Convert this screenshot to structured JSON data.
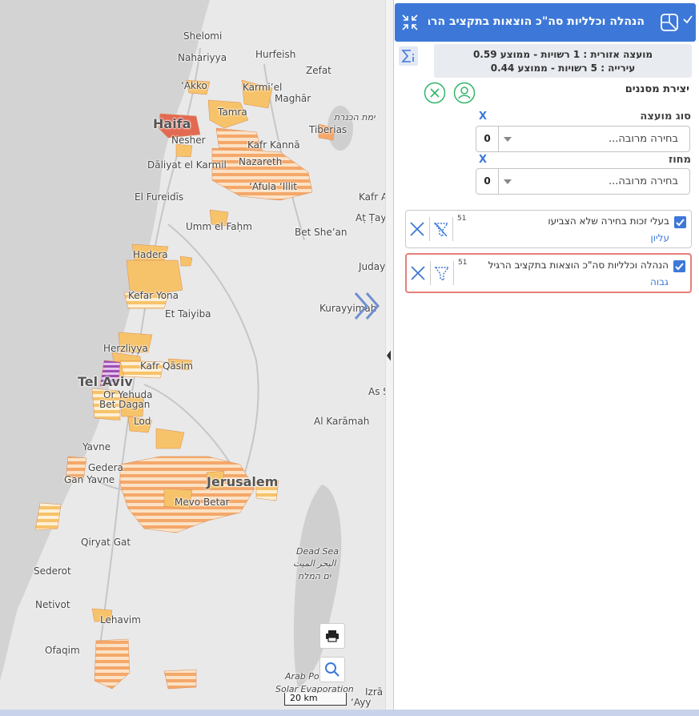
{
  "map": {
    "places": [
      {
        "id": "shelomi",
        "label": "Shelomi"
      },
      {
        "id": "nahariyya",
        "label": "Nahariyya"
      },
      {
        "id": "hurfeish",
        "label": "Hurfeish"
      },
      {
        "id": "zefat",
        "label": "Zefat"
      },
      {
        "id": "akko",
        "label": "‘Akko"
      },
      {
        "id": "karmiel",
        "label": "Karmi’el"
      },
      {
        "id": "maghar",
        "label": "Maghār"
      },
      {
        "id": "tamra",
        "label": "Tamra"
      },
      {
        "id": "haifa",
        "label": "Haifa"
      },
      {
        "id": "yam-kinneret",
        "label": "ימת הכנרת"
      },
      {
        "id": "tiberias",
        "label": "Tiberias"
      },
      {
        "id": "nesher",
        "label": "Nesher"
      },
      {
        "id": "kafr-kanna",
        "label": "Kafr Kannā"
      },
      {
        "id": "daliyat",
        "label": "Dāliyat el Karmil"
      },
      {
        "id": "nazareth",
        "label": "Nazareth"
      },
      {
        "id": "afula",
        "label": "‘Afula ‘Illit"
      },
      {
        "id": "el-fureidis",
        "label": "El Fureidīs"
      },
      {
        "id": "kafr-ar",
        "label": "Kafr Ar"
      },
      {
        "id": "at-tayyibe",
        "label": "Aṭ Ṭayyibe"
      },
      {
        "id": "umm-el-fahm",
        "label": "Umm el Faḥm"
      },
      {
        "id": "bet-shean",
        "label": "Bet She’an"
      },
      {
        "id": "hadera",
        "label": "Hadera"
      },
      {
        "id": "juday",
        "label": "Juday"
      },
      {
        "id": "kefar-yona",
        "label": "Kefar Yona"
      },
      {
        "id": "et-taiyiba",
        "label": "Et Taiyiba"
      },
      {
        "id": "kurayyimah",
        "label": "Kurayyimah"
      },
      {
        "id": "herzliyya",
        "label": "Herzliyya"
      },
      {
        "id": "kafr-qasim",
        "label": "Kafr Qāsim"
      },
      {
        "id": "tel-aviv",
        "label": "Tel Aviv"
      },
      {
        "id": "or-yehuda",
        "label": "Or Yehuda"
      },
      {
        "id": "as-s",
        "label": "As S"
      },
      {
        "id": "bet-dagan",
        "label": "Bet Dagan"
      },
      {
        "id": "lod",
        "label": "Lod"
      },
      {
        "id": "al-karamah",
        "label": "Al Karāmah"
      },
      {
        "id": "yavne",
        "label": "Yavne"
      },
      {
        "id": "gedera",
        "label": "Gedera"
      },
      {
        "id": "jerusalem",
        "label": "Jerusalem"
      },
      {
        "id": "gan-yavne",
        "label": "Gan Yavne"
      },
      {
        "id": "mevo-betar",
        "label": "Mevo Betar"
      },
      {
        "id": "qiryat-gat",
        "label": "Qiryat Gat"
      },
      {
        "id": "dead-sea-1",
        "label": "Dead Sea"
      },
      {
        "id": "dead-sea-2",
        "label": "البحر الميت"
      },
      {
        "id": "dead-sea-3",
        "label": "ים המלח"
      },
      {
        "id": "sederot",
        "label": "Sederot"
      },
      {
        "id": "netivot",
        "label": "Netivot"
      },
      {
        "id": "lehavim",
        "label": "Lehavim"
      },
      {
        "id": "ofaqim",
        "label": "Ofaqim"
      },
      {
        "id": "arab-potash",
        "label": "Arab Po"
      },
      {
        "id": "solar-evap",
        "label": "Solar Evaporation"
      },
      {
        "id": "izra",
        "label": "Izrā"
      },
      {
        "id": "ayy",
        "label": "‘Ayy"
      }
    ],
    "scale_label": "20 km",
    "print_icon": "printer-icon",
    "search_icon": "magnifier-icon",
    "expand_icon": "double-chevron-right-icon",
    "colors": {
      "fill_orange": "#f5a95c",
      "fill_yellow": "#f7c36a",
      "fill_purple": "#9b4fb0",
      "fill_red": "#e36a52"
    }
  },
  "panel": {
    "title": "הנהלה וכלליות סה\"כ הוצאות בתקציב הרגי...",
    "summary_line1": "מועצה אזורית : 1 רשויות - ממוצע 0.59",
    "summary_line2": "עירייה : 5 רשויות - ממוצע 0.44",
    "filters_title": "יצירת מסננים",
    "filters": [
      {
        "label": "סוג מועצה",
        "clear": "X",
        "placeholder": "בחירה מרובה...",
        "count": "0"
      },
      {
        "label": "מחוז",
        "clear": "X",
        "placeholder": "בחירה מרובה...",
        "count": "0"
      }
    ],
    "layers": [
      {
        "name": "בעלי זכות בחירה שלא הצביעו",
        "sub": "עליון",
        "num": "51",
        "checked": true
      },
      {
        "name": "הנהלה וכלליות סה\"כ הוצאות בתקציב הרגיל",
        "sub": "גבוה",
        "num": "51",
        "checked": true
      }
    ],
    "accent": "#3d78d8",
    "active_border": "#e5807a"
  }
}
